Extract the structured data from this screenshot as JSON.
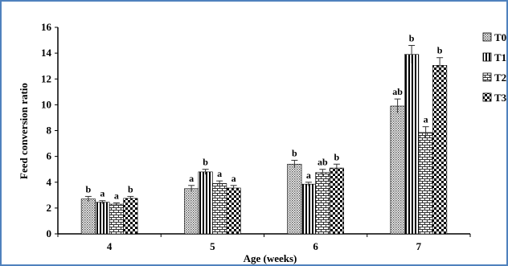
{
  "chart_data": {
    "type": "bar",
    "xlabel": "Age (weeks)",
    "ylabel": "Feed conversion ratio",
    "ylim": [
      0,
      16
    ],
    "yticks": [
      0,
      2,
      4,
      6,
      8,
      10,
      12,
      14,
      16
    ],
    "categories": [
      "4",
      "5",
      "6",
      "7"
    ],
    "legend_position": "right",
    "series": [
      {
        "name": "T0",
        "pattern": "dots",
        "values": [
          2.7,
          3.5,
          5.4,
          9.9
        ],
        "errors": [
          0.2,
          0.25,
          0.3,
          0.55
        ],
        "labels": [
          "b",
          "a",
          "b",
          "ab"
        ]
      },
      {
        "name": "T1",
        "pattern": "vertical",
        "values": [
          2.45,
          4.8,
          3.85,
          13.9
        ],
        "errors": [
          0.12,
          0.2,
          0.15,
          0.7
        ],
        "labels": [
          "a",
          "b",
          "a",
          "b"
        ]
      },
      {
        "name": "T2",
        "pattern": "bricks",
        "values": [
          2.3,
          3.9,
          4.75,
          7.85
        ],
        "errors": [
          0.1,
          0.2,
          0.25,
          0.45
        ],
        "labels": [
          "a",
          "a",
          "ab",
          "a"
        ]
      },
      {
        "name": "T3",
        "pattern": "checker",
        "values": [
          2.75,
          3.55,
          5.1,
          13.05
        ],
        "errors": [
          0.15,
          0.2,
          0.3,
          0.6
        ],
        "labels": [
          "b",
          "a",
          "b",
          "b"
        ]
      }
    ]
  }
}
